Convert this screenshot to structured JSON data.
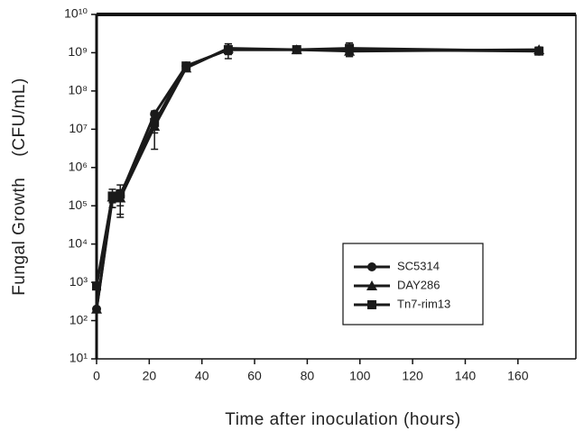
{
  "chart_data": {
    "type": "line",
    "xlabel": "Time after inoculation (hours)",
    "ylabel": "Fungal Growth    (CFU/mL)",
    "x": [
      0,
      6,
      9,
      22,
      34,
      50,
      76,
      96,
      168
    ],
    "series": [
      {
        "name": "SC5314",
        "color": "#1a1a1a",
        "marker": "circle",
        "values": [
          200,
          150000,
          180000,
          25000000,
          450000000,
          1200000000,
          1200000000,
          1200000000,
          1100000000
        ],
        "errors": [
          20,
          60000,
          80000,
          5000000,
          50000000,
          500000000,
          200000000,
          400000000,
          200000000
        ]
      },
      {
        "name": "DAY286",
        "color": "#1a1a1a",
        "marker": "triangle",
        "values": [
          200,
          170000,
          160000,
          12000000,
          400000000,
          1300000000,
          1200000000,
          1100000000,
          1200000000
        ],
        "errors": [
          20,
          50000,
          100000,
          4000000,
          50000000,
          400000000,
          200000000,
          300000000,
          200000000
        ]
      },
      {
        "name": "Tn7-rim13",
        "color": "#1a1a1a",
        "marker": "square",
        "values": [
          800,
          180000,
          200000,
          15000000,
          450000000,
          1200000000,
          1200000000,
          1300000000,
          1100000000
        ],
        "errors": [
          100,
          90000,
          150000,
          12000000,
          50000000,
          300000000,
          200000000,
          500000000,
          200000000
        ]
      }
    ],
    "xlim": [
      0,
      182
    ],
    "xticks": [
      0,
      20,
      40,
      60,
      80,
      100,
      120,
      140,
      160
    ],
    "ylim": [
      10,
      10000000000
    ],
    "log_y": true,
    "yticks": [
      {
        "value": 10,
        "label": "10¹"
      },
      {
        "value": 100,
        "label": "10²"
      },
      {
        "value": 1000,
        "label": "10³"
      },
      {
        "value": 10000,
        "label": "10⁴"
      },
      {
        "value": 100000,
        "label": "10⁵"
      },
      {
        "value": 1000000,
        "label": "10⁶"
      },
      {
        "value": 10000000,
        "label": "10⁷"
      },
      {
        "value": 100000000,
        "label": "10⁸"
      },
      {
        "value": 1000000000,
        "label": "10⁹"
      },
      {
        "value": 10000000000,
        "label": "10¹⁰"
      }
    ],
    "legend": "lower right"
  }
}
